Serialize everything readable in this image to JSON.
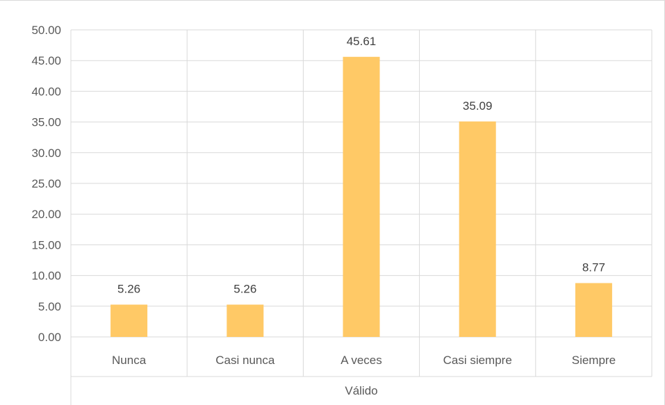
{
  "chart_data": {
    "type": "bar",
    "categories": [
      "Nunca",
      "Casi nunca",
      "A veces",
      "Casi siempre",
      "Siempre"
    ],
    "values": [
      5.26,
      5.26,
      45.61,
      35.09,
      8.77
    ],
    "data_labels": [
      "5.26",
      "5.26",
      "45.61",
      "35.09",
      "8.77"
    ],
    "y_tick_labels": [
      "0.00",
      "5.00",
      "10.00",
      "15.00",
      "20.00",
      "25.00",
      "30.00",
      "35.00",
      "40.00",
      "45.00",
      "50.00"
    ],
    "group_label": "Válido",
    "title": "",
    "xlabel": "",
    "ylabel": "",
    "ylim": [
      0,
      50
    ],
    "ytick_step": 5,
    "grid": true,
    "legend": "none",
    "bar_color": "#FFC966",
    "grid_color": "#d9d9d9",
    "text_color": "#595959"
  }
}
